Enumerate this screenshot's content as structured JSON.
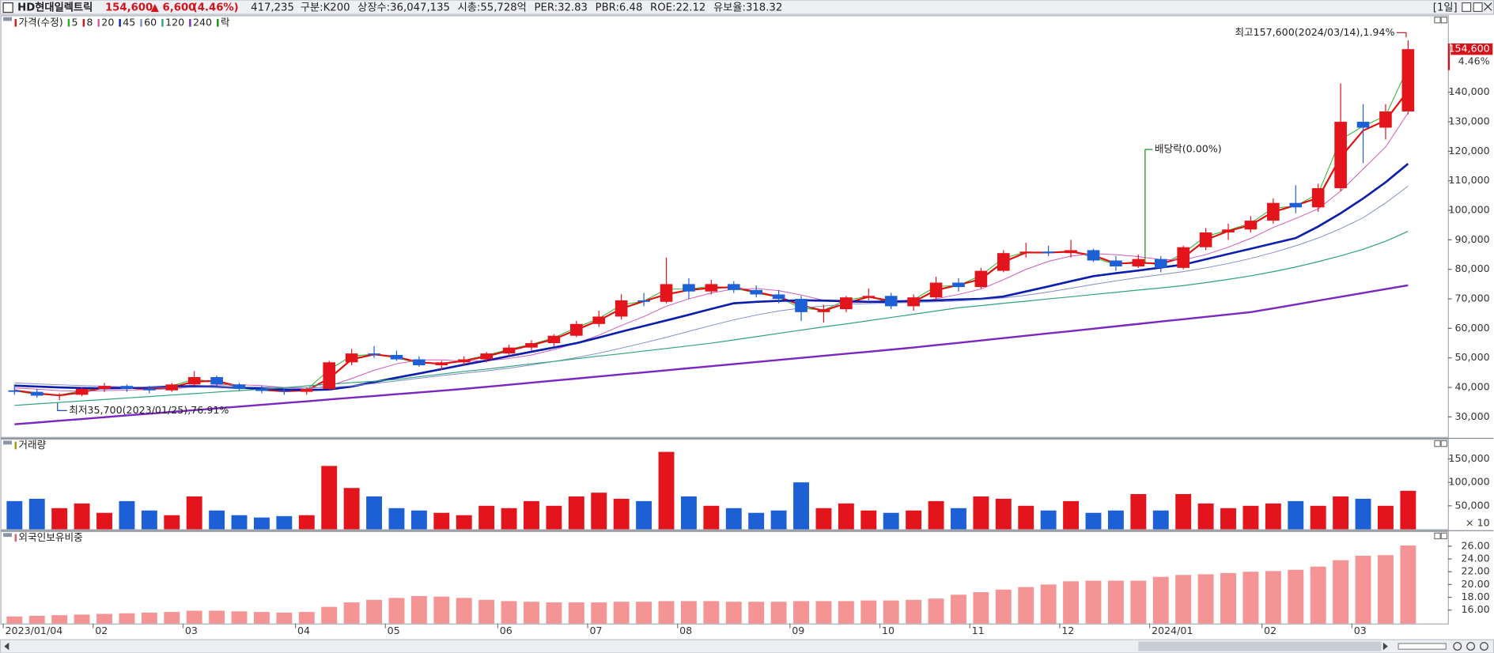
{
  "header": {
    "name": "HD현대일렉트릭",
    "price": "154,600",
    "change": "▲ 6,600",
    "change_pct": "(4.46%)",
    "volume": "417,235",
    "items": [
      "구분:K200",
      "상장수:36,047,135",
      "시총:55,728억",
      "PER:32.83",
      "PBR:6.48",
      "ROE:22.12",
      "유보율:318.32"
    ],
    "period": "[1일]"
  },
  "chart_data": [
    {
      "type": "candlestick",
      "name": "가격(수정)",
      "categories": [
        "2023/01/04",
        null,
        null,
        null,
        "02",
        null,
        null,
        null,
        "03",
        null,
        null,
        null,
        null,
        "04",
        null,
        null,
        null,
        "05",
        null,
        null,
        null,
        null,
        "06",
        null,
        null,
        null,
        "07",
        null,
        null,
        null,
        "08",
        null,
        null,
        null,
        null,
        "09",
        null,
        null,
        null,
        "10",
        null,
        null,
        null,
        "11",
        null,
        null,
        null,
        "12",
        null,
        null,
        null,
        "2024/01",
        null,
        null,
        null,
        null,
        "02",
        null,
        null,
        null,
        "03",
        null,
        null
      ],
      "open": [
        39000,
        38500,
        37200,
        37500,
        39500,
        40500,
        39500,
        39000,
        41000,
        43500,
        41000,
        39500,
        38800,
        38500,
        39500,
        48500,
        51500,
        51000,
        49500,
        47500,
        48500,
        49500,
        51500,
        53500,
        55000,
        57500,
        61500,
        64000,
        69500,
        69000,
        75000,
        72500,
        75000,
        73000,
        71500,
        70000,
        65500,
        66500,
        70500,
        71000,
        67500,
        70500,
        75500,
        74000,
        79500,
        85500,
        86000,
        85500,
        86500,
        83000,
        81000,
        83500,
        80500,
        87500,
        92500,
        93500,
        96500,
        102500,
        101000,
        107500,
        130000,
        128000,
        133500
      ],
      "high": [
        41000,
        39500,
        38000,
        40000,
        41500,
        41000,
        40500,
        41500,
        45500,
        44000,
        41500,
        40500,
        39500,
        40000,
        49000,
        53000,
        54000,
        52500,
        50500,
        49000,
        50500,
        52000,
        54500,
        56000,
        58000,
        62500,
        66000,
        71500,
        72000,
        84000,
        77000,
        76500,
        76000,
        74500,
        73000,
        71000,
        68000,
        71000,
        73500,
        72000,
        71500,
        77500,
        77000,
        80500,
        86500,
        89000,
        88000,
        90000,
        87000,
        84500,
        85000,
        84500,
        88000,
        94000,
        95500,
        98000,
        104000,
        108500,
        109000,
        143000,
        136000,
        136000,
        157600
      ],
      "low": [
        37500,
        36500,
        35700,
        37000,
        38500,
        38500,
        38000,
        38500,
        40500,
        40500,
        39000,
        38000,
        37500,
        37500,
        39000,
        47500,
        50000,
        49000,
        47000,
        46000,
        47500,
        48500,
        50500,
        52500,
        54000,
        57000,
        60500,
        63000,
        67500,
        68500,
        70000,
        71500,
        72000,
        70500,
        68500,
        62500,
        62000,
        65500,
        69500,
        66500,
        66000,
        69500,
        72500,
        73500,
        79000,
        84000,
        84500,
        84000,
        82500,
        79500,
        80500,
        79000,
        80000,
        86500,
        90000,
        92500,
        95500,
        99000,
        99500,
        106500,
        116000,
        124000,
        132500
      ],
      "close": [
        38500,
        37200,
        37500,
        39500,
        40500,
        39500,
        39000,
        41000,
        43500,
        41000,
        39500,
        38800,
        38500,
        39500,
        48500,
        51500,
        51000,
        49500,
        47500,
        48500,
        49500,
        51500,
        53500,
        55000,
        57500,
        61500,
        64000,
        69500,
        69000,
        75000,
        72500,
        75000,
        73000,
        71500,
        70000,
        65500,
        66500,
        70500,
        71000,
        67500,
        70500,
        75500,
        74000,
        79500,
        85500,
        86000,
        85500,
        86500,
        83000,
        81000,
        83500,
        80500,
        87500,
        92500,
        93500,
        96500,
        102500,
        101000,
        107500,
        130000,
        128000,
        133500,
        154600
      ],
      "up_color": "#e3141b",
      "down_color": "#1d5fd4",
      "name_color": "#e3141b",
      "series": [
        {
          "name": "5",
          "color": "#22b022",
          "values": [
            38800,
            37600,
            37400,
            38900,
            40200,
            39800,
            39200,
            40500,
            42800,
            41700,
            40000,
            39000,
            38600,
            39200,
            46000,
            50700,
            51200,
            50000,
            48200,
            48200,
            49200,
            50900,
            52900,
            54600,
            56800,
            60300,
            63300,
            68000,
            69200,
            73300,
            73300,
            74300,
            73600,
            72000,
            70500,
            66800,
            66200,
            69500,
            70900,
            68500,
            69700,
            74200,
            74500,
            78000,
            83800,
            85900,
            85600,
            86300,
            84000,
            81600,
            82800,
            81300,
            85500,
            91200,
            93200,
            95700,
            100800,
            101400,
            105700,
            124000,
            128500,
            132000,
            148500
          ]
        },
        {
          "name": "8",
          "color": "#e01010",
          "values": [
            39000,
            38000,
            37300,
            38300,
            40000,
            40000,
            39300,
            40000,
            42000,
            42200,
            40300,
            39200,
            38700,
            39000,
            43000,
            49500,
            51200,
            50300,
            48500,
            48000,
            49000,
            50500,
            52500,
            54300,
            56300,
            59500,
            62700,
            66700,
            69200,
            71500,
            73000,
            73700,
            74000,
            72300,
            70700,
            67800,
            66000,
            68500,
            70700,
            69300,
            69000,
            73000,
            74700,
            76700,
            82500,
            85700,
            85700,
            86000,
            84700,
            82000,
            82200,
            82000,
            84000,
            90000,
            93000,
            95000,
            99500,
            101700,
            104200,
            118000,
            127000,
            130500,
            140500
          ]
        },
        {
          "name": "20",
          "color": "#d05ab8",
          "values": [
            39800,
            39400,
            38900,
            38700,
            38900,
            39100,
            39300,
            39500,
            40200,
            40800,
            40900,
            40600,
            40000,
            39400,
            40500,
            43000,
            45800,
            48000,
            49300,
            49300,
            48900,
            49000,
            49800,
            51000,
            52800,
            55000,
            57700,
            61000,
            64000,
            67500,
            70000,
            72000,
            73300,
            73500,
            72800,
            71300,
            69500,
            68700,
            68800,
            68800,
            68700,
            70000,
            71500,
            73300,
            76500,
            80000,
            82700,
            84500,
            85300,
            85000,
            84300,
            83300,
            83200,
            85000,
            87500,
            90500,
            94200,
            97200,
            100500,
            106500,
            114000,
            121500,
            133000
          ]
        },
        {
          "name": "45",
          "color": "#0c1eab",
          "values": [
            40600,
            40300,
            40000,
            39800,
            39700,
            39800,
            40000,
            40300,
            40400,
            40200,
            39900,
            39600,
            39300,
            39100,
            39300,
            40300,
            41800,
            43300,
            44700,
            46200,
            47700,
            49100,
            50600,
            52100,
            53500,
            55000,
            56900,
            58900,
            60800,
            62700,
            64600,
            66600,
            68500,
            69000,
            69300,
            69500,
            69400,
            69200,
            69000,
            69100,
            69300,
            69500,
            69800,
            70000,
            70800,
            72500,
            74200,
            76000,
            77700,
            78700,
            79600,
            80600,
            81600,
            83400,
            85200,
            87000,
            88800,
            90600,
            94500,
            99000,
            104000,
            109500,
            115800
          ]
        },
        {
          "name": "60",
          "color": "#7f8ccc",
          "values": [
            41500,
            41200,
            40900,
            40600,
            40400,
            40200,
            40100,
            40000,
            40000,
            40100,
            40200,
            40100,
            40000,
            39900,
            40000,
            40500,
            41300,
            42200,
            43100,
            44000,
            44800,
            45600,
            46500,
            47600,
            48800,
            50100,
            51600,
            53300,
            55100,
            57000,
            59000,
            61000,
            62900,
            64500,
            65900,
            66900,
            67600,
            68100,
            68400,
            68600,
            68800,
            69000,
            69300,
            69700,
            70300,
            71200,
            72300,
            73600,
            74900,
            76100,
            77200,
            78200,
            79200,
            80500,
            82000,
            83700,
            85700,
            88000,
            90600,
            93800,
            97500,
            102500,
            108200
          ]
        },
        {
          "name": "120",
          "color": "#2fa27c",
          "values": [
            33900,
            34400,
            34900,
            35400,
            35900,
            36400,
            36900,
            37400,
            37900,
            38400,
            38900,
            39400,
            39900,
            40500,
            41100,
            41600,
            42100,
            42700,
            43600,
            44500,
            45400,
            46200,
            47100,
            48000,
            48800,
            49700,
            50600,
            51400,
            52300,
            53200,
            54100,
            55000,
            56100,
            57200,
            58300,
            59400,
            60500,
            61500,
            62600,
            63700,
            64800,
            65900,
            67000,
            67700,
            68500,
            69200,
            70000,
            70700,
            71500,
            72200,
            73000,
            73700,
            74500,
            75500,
            76600,
            77800,
            79200,
            80800,
            82600,
            84600,
            86800,
            89500,
            92900
          ]
        },
        {
          "name": "240",
          "color": "#7a28c0",
          "values": [
            27500,
            28100,
            28700,
            29300,
            29900,
            30500,
            31100,
            31700,
            32300,
            32900,
            33500,
            34100,
            34700,
            35300,
            35900,
            36500,
            37100,
            37700,
            38300,
            38900,
            39500,
            40200,
            40900,
            41600,
            42300,
            43000,
            43700,
            44400,
            45100,
            45800,
            46500,
            47200,
            47900,
            48600,
            49300,
            50000,
            50700,
            51400,
            52100,
            52800,
            53500,
            54300,
            55100,
            55900,
            56700,
            57500,
            58300,
            59100,
            59900,
            60700,
            61500,
            62300,
            63100,
            63900,
            64700,
            65500,
            66800,
            68100,
            69400,
            70700,
            72000,
            73300,
            74600
          ]
        }
      ],
      "event_marker": {
        "name": "락",
        "color": "#1a8a1a",
        "label": "배당락(0.00%)"
      },
      "high_label": "최고157,600(2024/03/14),1.94%",
      "low_label": "최저35,700(2023/01/25),76.91%",
      "last_price_label": "154,600",
      "last_change_label": "4.46%",
      "ylim": [
        22900,
        166100
      ],
      "yticks": [
        {
          "value": 30000,
          "label": "30,000"
        },
        {
          "value": 40000,
          "label": "40,000"
        },
        {
          "value": 50000,
          "label": "50,000"
        },
        {
          "value": 60000,
          "label": "60,000"
        },
        {
          "value": 70000,
          "label": "70,000"
        },
        {
          "value": 80000,
          "label": "80,000"
        },
        {
          "value": 90000,
          "label": "90,000"
        },
        {
          "value": 100000,
          "label": "100,000"
        },
        {
          "value": 110000,
          "label": "110,000"
        },
        {
          "value": 120000,
          "label": "120,000"
        },
        {
          "value": 130000,
          "label": "130,000"
        },
        {
          "value": 140000,
          "label": "140,000"
        }
      ]
    },
    {
      "type": "bar",
      "name": "거래량",
      "name_color": "#b09a00",
      "values": [
        60000,
        65000,
        45000,
        55000,
        35000,
        60000,
        40000,
        30000,
        70000,
        40000,
        30000,
        25000,
        28000,
        30000,
        135000,
        88000,
        70000,
        45000,
        40000,
        35000,
        30000,
        50000,
        45000,
        60000,
        50000,
        70000,
        78000,
        65000,
        60000,
        165000,
        70000,
        50000,
        45000,
        35000,
        40000,
        100000,
        45000,
        55000,
        40000,
        35000,
        40000,
        60000,
        45000,
        70000,
        65000,
        50000,
        40000,
        60000,
        35000,
        40000,
        75000,
        40000,
        75000,
        55000,
        45000,
        50000,
        55000,
        60000,
        50000,
        70000,
        65000,
        50000,
        82000
      ],
      "unit_label": "× 10",
      "ylim": [
        0,
        190800
      ],
      "yticks": [
        {
          "value": 50000,
          "label": "50,000"
        },
        {
          "value": 100000,
          "label": "100,000"
        },
        {
          "value": 150000,
          "label": "150,000"
        }
      ]
    },
    {
      "type": "bar",
      "name": "외국인보유비중",
      "name_color": "#e06060",
      "color": "#f49494",
      "values": [
        15.0,
        15.1,
        15.2,
        15.3,
        15.4,
        15.5,
        15.6,
        15.7,
        15.9,
        15.9,
        15.8,
        15.7,
        15.6,
        15.7,
        16.5,
        17.2,
        17.6,
        17.9,
        18.2,
        18.1,
        17.9,
        17.6,
        17.4,
        17.3,
        17.2,
        17.2,
        17.2,
        17.3,
        17.3,
        17.4,
        17.4,
        17.4,
        17.3,
        17.3,
        17.3,
        17.4,
        17.4,
        17.4,
        17.5,
        17.5,
        17.6,
        17.8,
        18.4,
        18.8,
        19.2,
        19.6,
        20.0,
        20.5,
        20.6,
        20.6,
        20.6,
        21.2,
        21.5,
        21.6,
        21.8,
        22.0,
        22.1,
        22.3,
        22.8,
        23.8,
        24.5,
        24.6,
        26.1
      ],
      "ylim": [
        13.9,
        28.2
      ],
      "yticks": [
        {
          "value": 16,
          "label": "16.00"
        },
        {
          "value": 18,
          "label": "18.00"
        },
        {
          "value": 20,
          "label": "20.00"
        },
        {
          "value": 22,
          "label": "22.00"
        },
        {
          "value": 24,
          "label": "24.00"
        },
        {
          "value": 26,
          "label": "26.00"
        }
      ]
    }
  ]
}
